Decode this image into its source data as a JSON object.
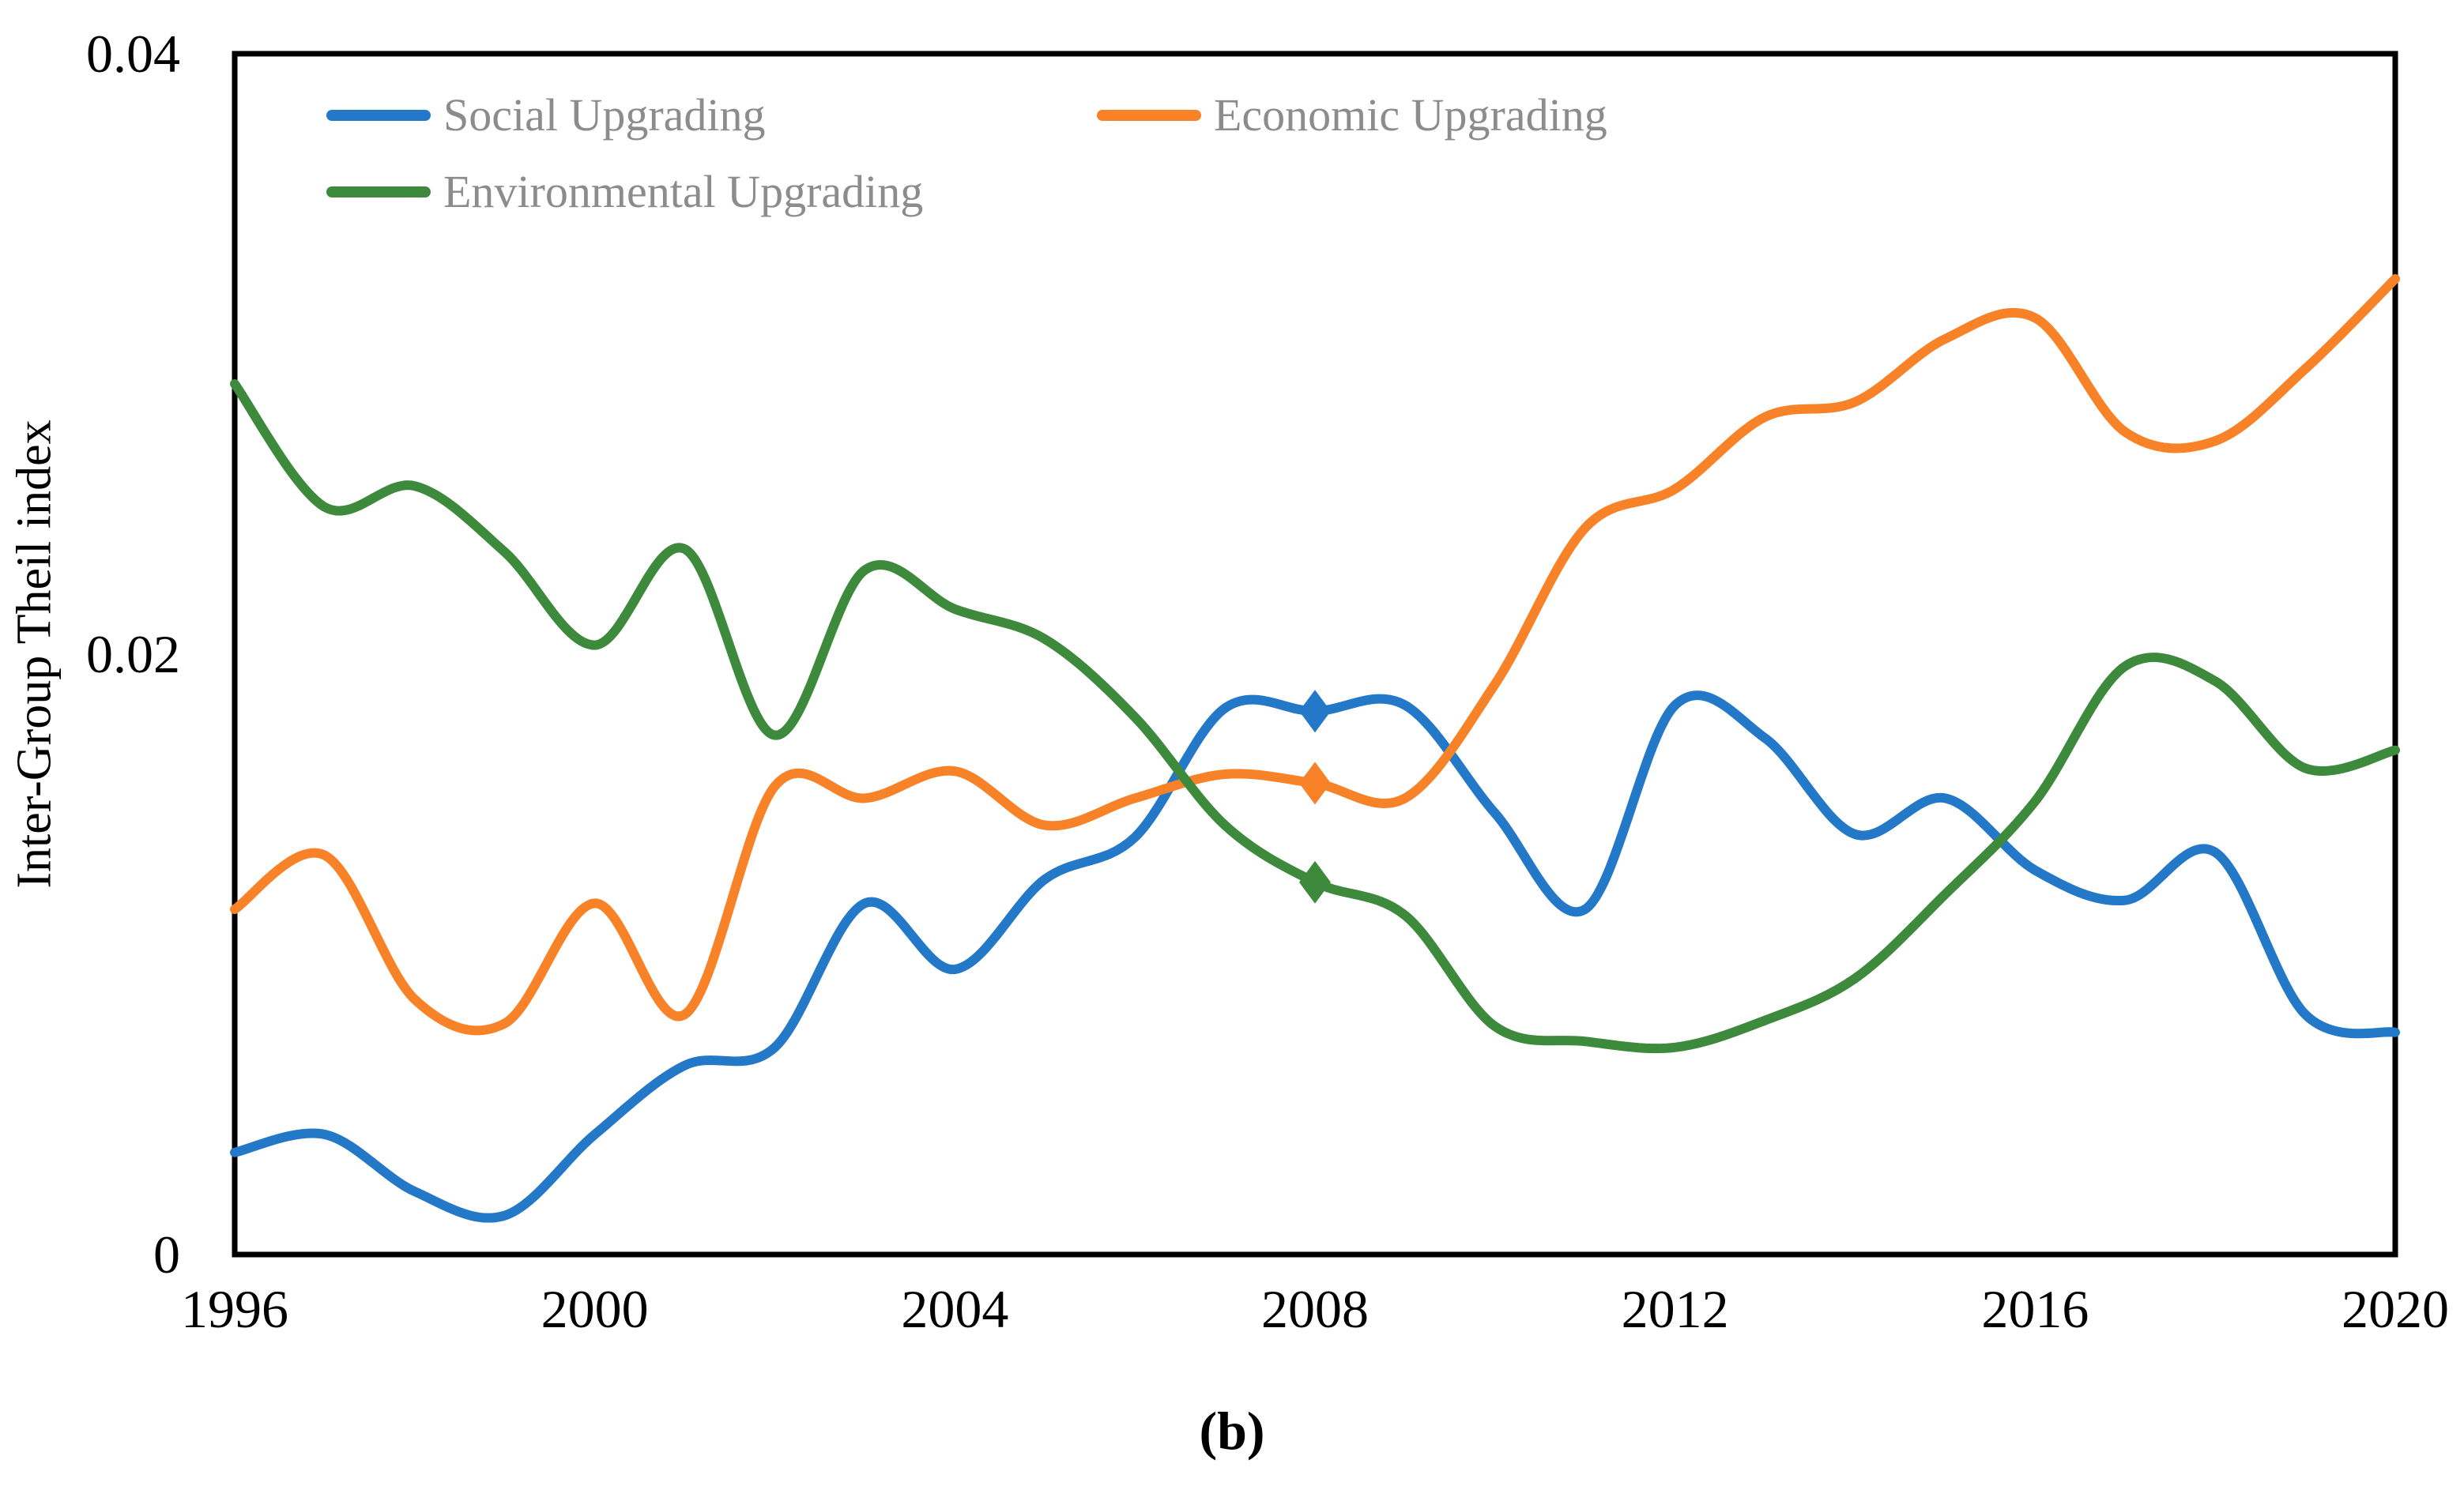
{
  "figure": {
    "caption": "(b)",
    "ylabel": "Inter-Group Theil index"
  },
  "colors": {
    "axis": "#000000",
    "legend_text": "#8c8c8c",
    "background": "#ffffff"
  },
  "chart_data": {
    "type": "line",
    "title": "",
    "xlabel": "",
    "ylabel": "Inter-Group Theil index",
    "xlim": [
      1996,
      2020
    ],
    "ylim": [
      0,
      0.04
    ],
    "grid": false,
    "frame": "full-box",
    "legend_position": "top-left-inside",
    "line_style": "smooth-spline",
    "marker_year": 2008,
    "marker_shape": "diamond",
    "x_ticks": [
      1996,
      2000,
      2004,
      2008,
      2012,
      2016,
      2020
    ],
    "y_ticks": [
      {
        "value": 0,
        "label": "0"
      },
      {
        "value": 0.02,
        "label": "0.02"
      },
      {
        "value": 0.04,
        "label": "0.04"
      }
    ],
    "x": [
      1996,
      1997,
      1998,
      1999,
      2000,
      2001,
      2002,
      2003,
      2004,
      2005,
      2006,
      2007,
      2008,
      2009,
      2010,
      2011,
      2012,
      2013,
      2014,
      2015,
      2016,
      2017,
      2018,
      2019,
      2020
    ],
    "series": [
      {
        "name": "Social Upgrading",
        "color": "#2478C8",
        "marker_value_2008": 0.0181,
        "values": [
          0.0034,
          0.004,
          0.0021,
          0.0013,
          0.004,
          0.0063,
          0.0069,
          0.0117,
          0.0095,
          0.0125,
          0.0139,
          0.0182,
          0.0181,
          0.0183,
          0.0147,
          0.0115,
          0.0183,
          0.0172,
          0.014,
          0.0152,
          0.0128,
          0.0118,
          0.0134,
          0.008,
          0.0074
        ]
      },
      {
        "name": "Economic Upgrading",
        "color": "#F88228",
        "marker_value_2008": 0.0157,
        "values": [
          0.0115,
          0.0133,
          0.0085,
          0.0077,
          0.0117,
          0.008,
          0.0156,
          0.0152,
          0.0161,
          0.0143,
          0.0152,
          0.016,
          0.0157,
          0.0152,
          0.019,
          0.0242,
          0.0255,
          0.0279,
          0.0284,
          0.0305,
          0.0312,
          0.0274,
          0.0271,
          0.0295,
          0.0325
        ]
      },
      {
        "name": "Environmental Upgrading",
        "color": "#3E8A3C",
        "marker_value_2008": 0.0124,
        "values": [
          0.029,
          0.0249,
          0.0256,
          0.0234,
          0.0203,
          0.0235,
          0.0173,
          0.0228,
          0.0215,
          0.0205,
          0.0179,
          0.0143,
          0.0124,
          0.0113,
          0.0076,
          0.0071,
          0.0069,
          0.0078,
          0.0092,
          0.012,
          0.0151,
          0.0196,
          0.0191,
          0.0162,
          0.0168
        ]
      }
    ]
  }
}
